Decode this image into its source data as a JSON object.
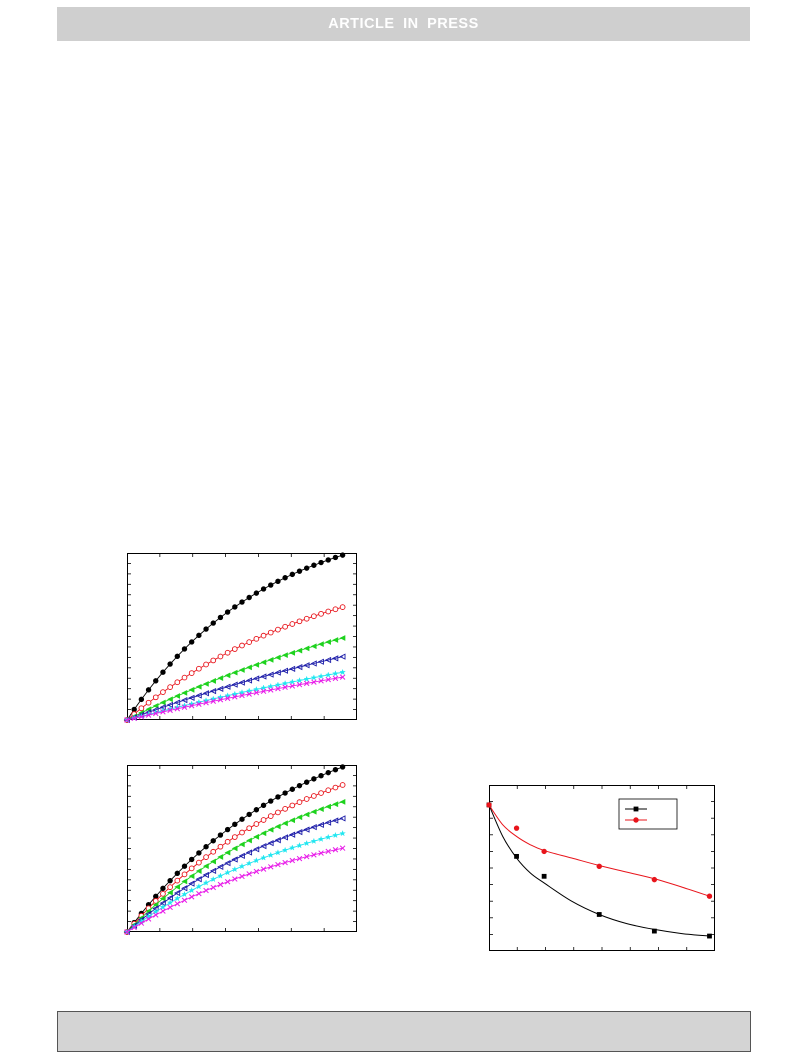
{
  "header": {
    "banner_text": "ARTICLE IN PRESS"
  },
  "colors": {
    "banner_bg": "#cfcfcf",
    "series": [
      "#000000",
      "#e8141b",
      "#1ed21e",
      "#1a1aa8",
      "#1fe6f0",
      "#e81ae8"
    ]
  },
  "chart_data": [
    {
      "type": "line",
      "panel": "top-left",
      "x": [
        0,
        1,
        2,
        3,
        4,
        5,
        6,
        7,
        8,
        9,
        10,
        11,
        12,
        13,
        14,
        15,
        16,
        17,
        18,
        19,
        20,
        21,
        22,
        23,
        24,
        25,
        26,
        27,
        28,
        29,
        30
      ],
      "xlim": [
        0,
        32
      ],
      "ylim": [
        0,
        10
      ],
      "grid": false,
      "series": [
        {
          "marker": "filled-circle",
          "color": "#000000",
          "asymptote": 12.5,
          "rate": 0.052
        },
        {
          "marker": "open-circle",
          "color": "#e8141b",
          "asymptote": 10.4,
          "rate": 0.035
        },
        {
          "marker": "filled-triangle-left",
          "color": "#1ed21e",
          "asymptote": 10.5,
          "rate": 0.021
        },
        {
          "marker": "open-triangle-left",
          "color": "#1a1aa8",
          "asymptote": 10.2,
          "rate": 0.0155
        },
        {
          "marker": "star",
          "color": "#1fe6f0",
          "asymptote": 9.8,
          "rate": 0.0115
        },
        {
          "marker": "cross",
          "color": "#e81ae8",
          "asymptote": 9.5,
          "rate": 0.0105
        }
      ]
    },
    {
      "type": "line",
      "panel": "bottom-left",
      "x": [
        0,
        1,
        2,
        3,
        4,
        5,
        6,
        7,
        8,
        9,
        10,
        11,
        12,
        13,
        14,
        15,
        16,
        17,
        18,
        19,
        20,
        21,
        22,
        23,
        24,
        25,
        26,
        27,
        28,
        29,
        30
      ],
      "xlim": [
        0,
        32
      ],
      "ylim": [
        0,
        10
      ],
      "grid": false,
      "series": [
        {
          "marker": "filled-circle",
          "color": "#000000",
          "asymptote": 13.8,
          "rate": 0.042
        },
        {
          "marker": "open-circle",
          "color": "#e8141b",
          "asymptote": 12.6,
          "rate": 0.04
        },
        {
          "marker": "filled-triangle-left",
          "color": "#1ed21e",
          "asymptote": 11.3,
          "rate": 0.039
        },
        {
          "marker": "open-triangle-left",
          "color": "#1a1aa8",
          "asymptote": 10.0,
          "rate": 0.038
        },
        {
          "marker": "star",
          "color": "#1fe6f0",
          "asymptote": 8.8,
          "rate": 0.037
        },
        {
          "marker": "cross",
          "color": "#e81ae8",
          "asymptote": 7.6,
          "rate": 0.036
        }
      ]
    },
    {
      "type": "line",
      "panel": "bottom-right",
      "xlim": [
        0,
        8.2
      ],
      "ylim": [
        0,
        10
      ],
      "legend": "top-right",
      "series": [
        {
          "name": "",
          "marker": "filled-square",
          "color": "#000000",
          "points": [
            [
              0,
              8.8
            ],
            [
              1,
              5.7
            ],
            [
              2,
              4.5
            ],
            [
              4,
              2.2
            ],
            [
              6,
              1.2
            ],
            [
              8,
              0.9
            ]
          ],
          "fit": [
            [
              0,
              8.8
            ],
            [
              0.5,
              6.9
            ],
            [
              1,
              5.6
            ],
            [
              1.5,
              4.7
            ],
            [
              2,
              4.1
            ],
            [
              3,
              3.0
            ],
            [
              4,
              2.2
            ],
            [
              5,
              1.65
            ],
            [
              6,
              1.3
            ],
            [
              7,
              1.05
            ],
            [
              8,
              0.9
            ]
          ]
        },
        {
          "name": "",
          "marker": "filled-circle",
          "color": "#e8141b",
          "points": [
            [
              0,
              8.8
            ],
            [
              1,
              7.4
            ],
            [
              2,
              6.0
            ],
            [
              4,
              5.1
            ],
            [
              6,
              4.3
            ],
            [
              8,
              3.3
            ]
          ],
          "fit": [
            [
              0,
              8.8
            ],
            [
              0.5,
              7.6
            ],
            [
              1,
              6.9
            ],
            [
              1.5,
              6.4
            ],
            [
              2,
              6.05
            ],
            [
              3,
              5.6
            ],
            [
              4,
              5.15
            ],
            [
              5,
              4.75
            ],
            [
              6,
              4.35
            ],
            [
              7,
              3.85
            ],
            [
              8,
              3.3
            ]
          ]
        }
      ]
    }
  ]
}
